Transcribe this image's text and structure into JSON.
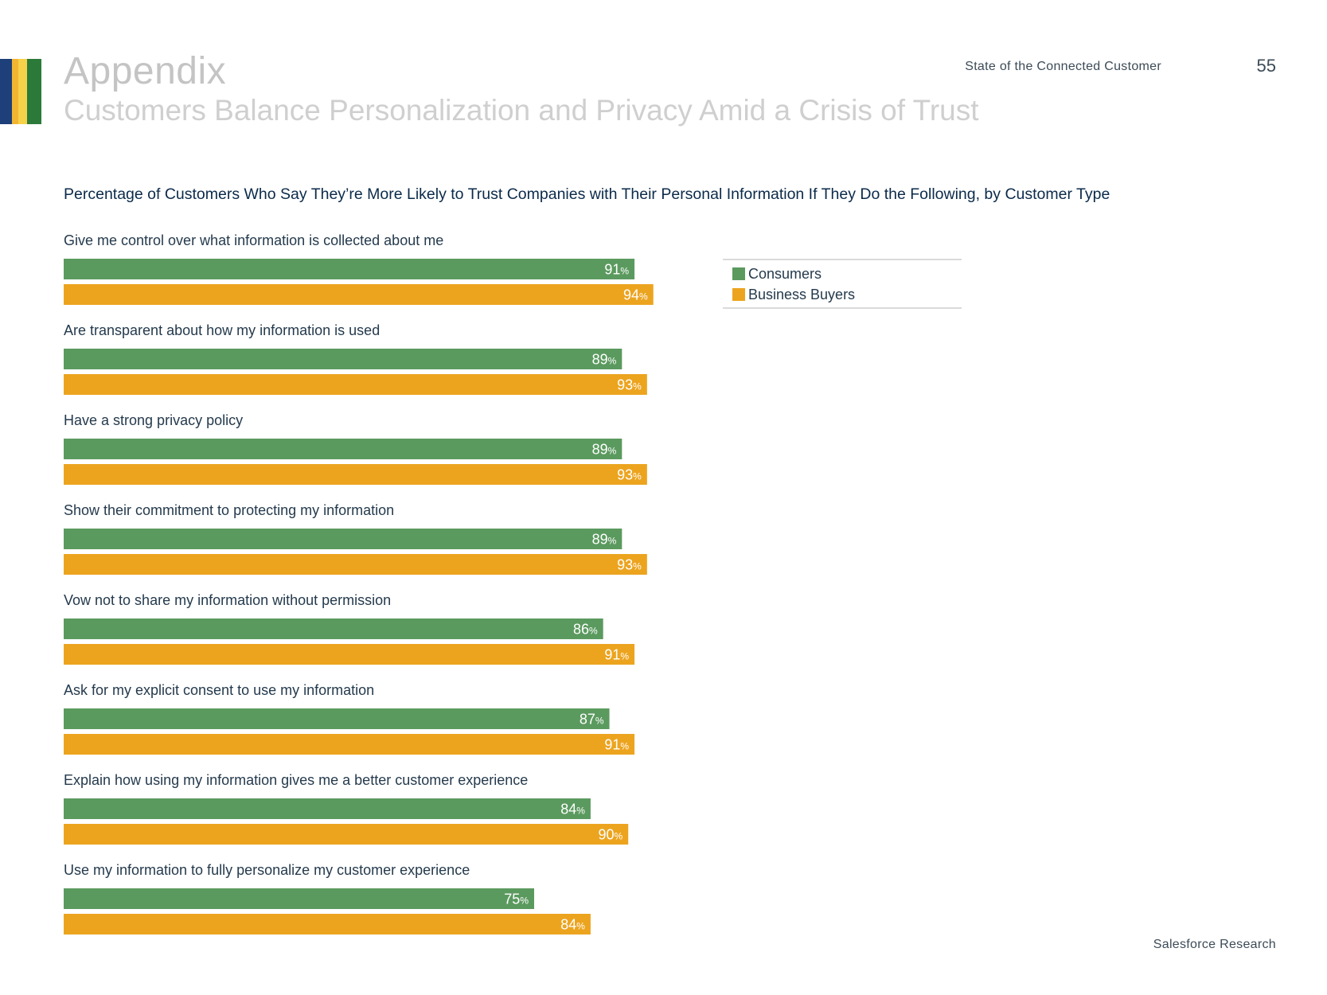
{
  "header": {
    "title": "Appendix",
    "subtitle": "Customers Balance Personalization and Privacy Amid a Crisis of Trust",
    "report_name": "State of the Connected Customer",
    "page_number": "55"
  },
  "decor": {
    "stripe_colors": [
      "#1d3f7a",
      "#f2b531",
      "#f6d24a",
      "#2c7a3a"
    ]
  },
  "colors": {
    "consumers": "#5b9a5f",
    "business_buyers": "#ecA41f",
    "category_text": "#243a4d",
    "bar_label_text": "#ffffff"
  },
  "chart_data": {
    "type": "bar",
    "orientation": "horizontal",
    "title": "Percentage of Customers Who Say They’re More Likely to Trust Companies with Their Personal Information If They Do the Following, by Customer Type",
    "value_suffix": "%",
    "xlim": [
      0,
      100
    ],
    "grid": false,
    "legend_position": "top-right",
    "categories": [
      "Give me control over what information is collected about me",
      "Are transparent about how my information is used",
      "Have a strong privacy policy",
      "Show their commitment to protecting my information",
      "Vow not to share my information without permission",
      "Ask for my explicit consent to use my information",
      "Explain how using my information gives me a better customer experience",
      "Use my information to fully personalize my customer experience"
    ],
    "series": [
      {
        "name": "Consumers",
        "values": [
          91,
          89,
          89,
          89,
          86,
          87,
          84,
          75
        ]
      },
      {
        "name": "Business Buyers",
        "values": [
          94,
          93,
          93,
          93,
          91,
          91,
          90,
          84
        ]
      }
    ]
  },
  "footer": {
    "source": "Salesforce Research"
  }
}
